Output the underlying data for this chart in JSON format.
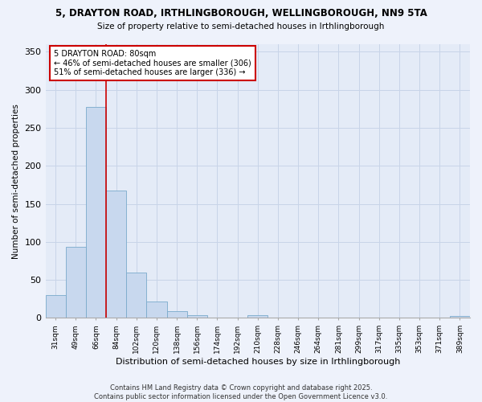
{
  "title1": "5, DRAYTON ROAD, IRTHLINGBOROUGH, WELLINGBOROUGH, NN9 5TA",
  "title2": "Size of property relative to semi-detached houses in Irthlingborough",
  "xlabel": "Distribution of semi-detached houses by size in Irthlingborough",
  "ylabel": "Number of semi-detached properties",
  "categories": [
    "31sqm",
    "49sqm",
    "66sqm",
    "84sqm",
    "102sqm",
    "120sqm",
    "138sqm",
    "156sqm",
    "174sqm",
    "192sqm",
    "210sqm",
    "228sqm",
    "246sqm",
    "264sqm",
    "281sqm",
    "299sqm",
    "317sqm",
    "335sqm",
    "353sqm",
    "371sqm",
    "389sqm"
  ],
  "values": [
    30,
    93,
    278,
    168,
    60,
    22,
    9,
    4,
    0,
    0,
    4,
    0,
    0,
    0,
    0,
    0,
    0,
    0,
    0,
    0,
    3
  ],
  "bar_color": "#c8d8ee",
  "bar_edge_color": "#7aaacb",
  "grid_color": "#c8d4e8",
  "annotation_title": "5 DRAYTON ROAD: 80sqm",
  "annotation_line1": "← 46% of semi-detached houses are smaller (306)",
  "annotation_line2": "51% of semi-detached houses are larger (336) →",
  "vline_color": "#cc0000",
  "annotation_box_edge_color": "#cc0000",
  "ylim": [
    0,
    360
  ],
  "yticks": [
    0,
    50,
    100,
    150,
    200,
    250,
    300,
    350
  ],
  "footer1": "Contains HM Land Registry data © Crown copyright and database right 2025.",
  "footer2": "Contains public sector information licensed under the Open Government Licence v3.0.",
  "bg_color": "#eef2fb",
  "plot_bg_color": "#e4ebf7"
}
